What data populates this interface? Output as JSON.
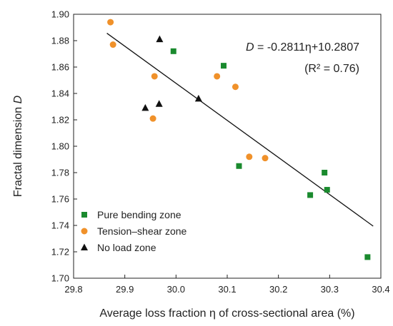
{
  "chart_data": {
    "type": "scatter",
    "xlabel": "Average loss fraction η of cross-sectional area (%)",
    "ylabel_main": "Fractal dimension ",
    "ylabel_var": "D",
    "xlim": [
      29.8,
      30.4
    ],
    "ylim": [
      1.7,
      1.9
    ],
    "xticks": [
      "29.8",
      "29.9",
      "30.0",
      "30.1",
      "30.2",
      "30.3",
      "30.4"
    ],
    "yticks": [
      "1.70",
      "1.72",
      "1.74",
      "1.76",
      "1.78",
      "1.80",
      "1.82",
      "1.84",
      "1.86",
      "1.88",
      "1.90"
    ],
    "legend_position": "bottom-left",
    "series": [
      {
        "name": "Pure bending zone",
        "marker": "square",
        "color": "#1a8a2e",
        "points": [
          [
            29.995,
            1.872
          ],
          [
            30.093,
            1.861
          ],
          [
            30.123,
            1.785
          ],
          [
            30.262,
            1.763
          ],
          [
            30.29,
            1.78
          ],
          [
            30.295,
            1.767
          ],
          [
            30.374,
            1.716
          ]
        ]
      },
      {
        "name": "Tension–shear zone",
        "marker": "circle",
        "color": "#f0912a",
        "points": [
          [
            29.872,
            1.894
          ],
          [
            29.877,
            1.877
          ],
          [
            29.958,
            1.853
          ],
          [
            29.955,
            1.821
          ],
          [
            30.08,
            1.853
          ],
          [
            30.116,
            1.845
          ],
          [
            30.143,
            1.792
          ],
          [
            30.174,
            1.791
          ]
        ]
      },
      {
        "name": "No load zone",
        "marker": "triangle",
        "color": "#111111",
        "points": [
          [
            29.94,
            1.829
          ],
          [
            29.967,
            1.832
          ],
          [
            29.968,
            1.881
          ],
          [
            30.044,
            1.836
          ]
        ]
      }
    ],
    "fit": {
      "slope": -0.2811,
      "intercept": 10.2807,
      "x_range": [
        29.865,
        30.385
      ],
      "color": "#111111"
    },
    "annotation": {
      "var": "D",
      "equation": " = -0.2811η+10.2807",
      "r2": "(R² = 0.76)"
    }
  }
}
